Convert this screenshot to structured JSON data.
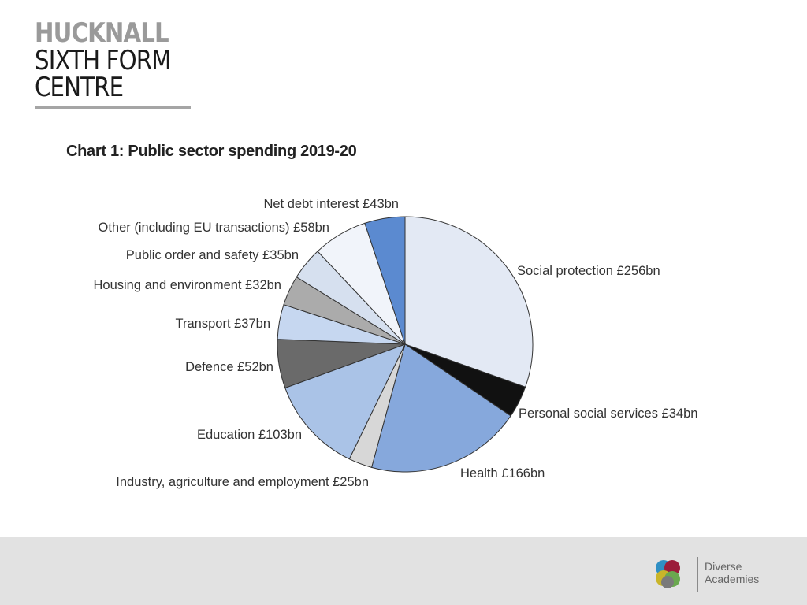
{
  "logo": {
    "line1": "HUCKNALL",
    "line2": "SIXTH FORM",
    "line3": "CENTRE"
  },
  "chart_data": {
    "type": "pie",
    "title": "Chart 1: Public sector spending 2019-20",
    "unit": "£bn",
    "slices": [
      {
        "name": "Social protection",
        "value": 256,
        "label": "Social protection £256bn",
        "color": "#e3e9f4"
      },
      {
        "name": "Personal social services",
        "value": 34,
        "label": "Personal social services £34bn",
        "color": "#111111"
      },
      {
        "name": "Health",
        "value": 166,
        "label": "Health £166bn",
        "color": "#86a8dc"
      },
      {
        "name": "Industry, agriculture and employment",
        "value": 25,
        "label": "Industry, agriculture and employment £25bn",
        "color": "#d7d7d7"
      },
      {
        "name": "Education",
        "value": 103,
        "label": "Education £103bn",
        "color": "#aac3e7"
      },
      {
        "name": "Defence",
        "value": 52,
        "label": "Defence £52bn",
        "color": "#6a6a6a"
      },
      {
        "name": "Transport",
        "value": 37,
        "label": "Transport £37bn",
        "color": "#c6d7f0"
      },
      {
        "name": "Housing and environment",
        "value": 32,
        "label": "Housing and environment £32bn",
        "color": "#ababab"
      },
      {
        "name": "Public order and safety",
        "value": 35,
        "label": "Public order and safety £35bn",
        "color": "#d6e0ef"
      },
      {
        "name": "Other (including EU transactions)",
        "value": 58,
        "label": "Other (including EU transactions) £58bn",
        "color": "#f1f4fa"
      },
      {
        "name": "Net debt interest",
        "value": 43,
        "label": "Net debt interest £43bn",
        "color": "#5b8ad0"
      }
    ]
  },
  "footer": {
    "brand_line1": "Diverse",
    "brand_line2": "Academies"
  }
}
